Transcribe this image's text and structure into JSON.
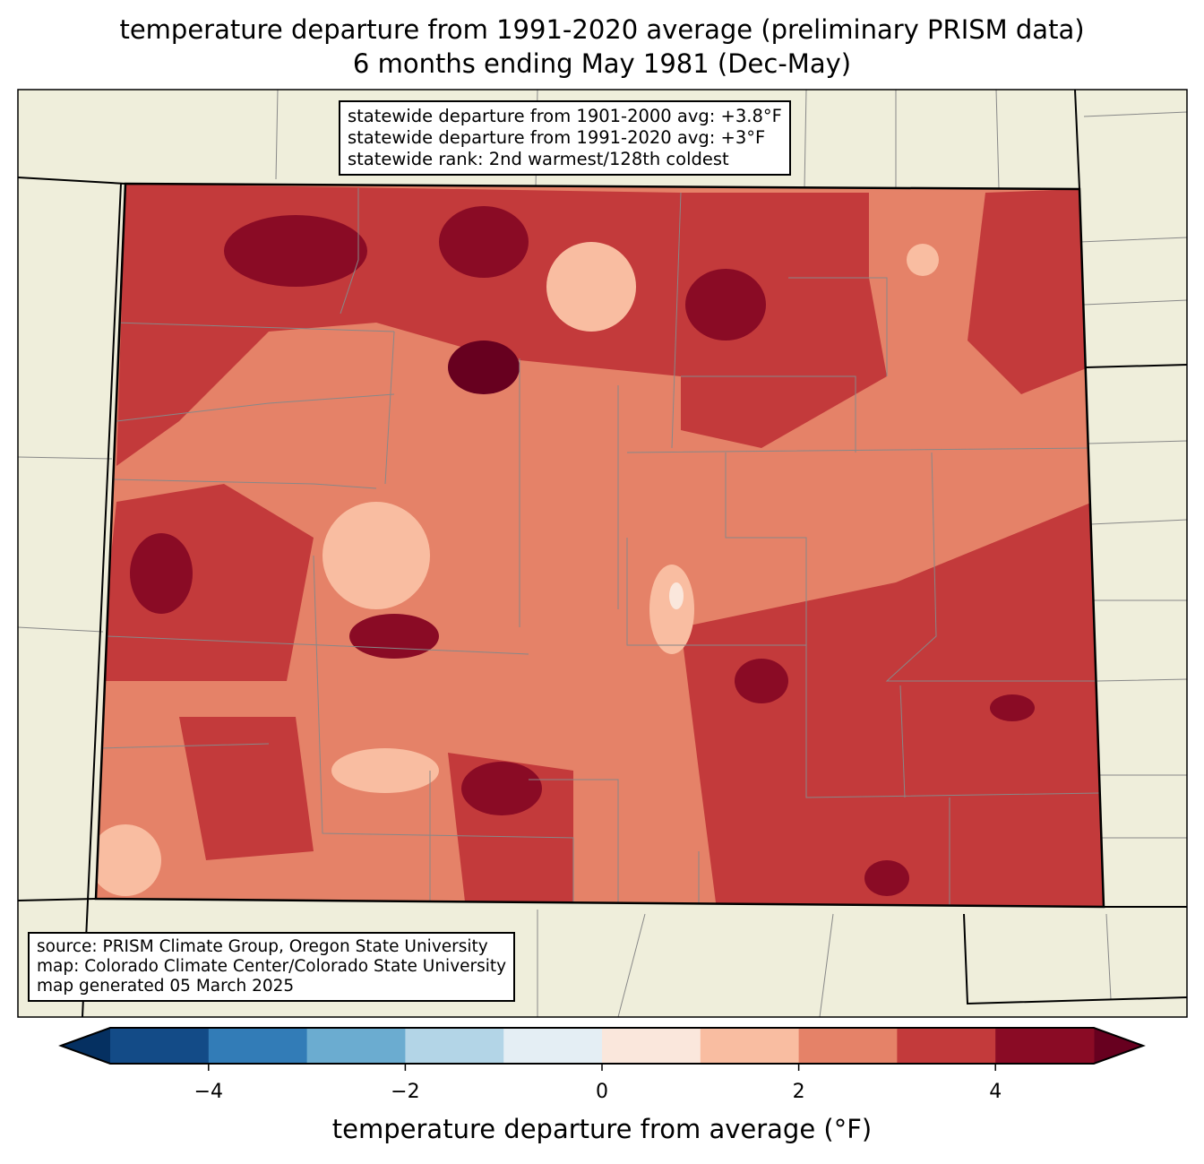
{
  "title": {
    "line1": "temperature departure from 1991-2020 average (preliminary PRISM data)",
    "line2": "6 months ending May 1981 (Dec-May)"
  },
  "stats": {
    "line1": "statewide departure from 1901-2000 avg: +3.8°F",
    "line2": "statewide departure from 1991-2020 avg: +3°F",
    "line3": "statewide rank: 2nd warmest/128th coldest"
  },
  "source": {
    "line1": "source: PRISM Climate Group, Oregon State University",
    "line2": "map: Colorado Climate Center/Colorado State University",
    "line3": "map generated 05 March 2025"
  },
  "colorbar": {
    "label": "temperature departure from average (°F)",
    "levels": [
      -5,
      -4,
      -3,
      -2,
      -1,
      0,
      1,
      2,
      3,
      4,
      5
    ],
    "colors": [
      "#134b87",
      "#327cb7",
      "#6bacd0",
      "#b3d5e7",
      "#e4eef4",
      "#fae7dc",
      "#f9bda1",
      "#e58268",
      "#c33a3b",
      "#8a0b25"
    ],
    "under_color": "#053061",
    "over_color": "#67001f",
    "ticks": [
      "−4",
      "−2",
      "0",
      "2",
      "4"
    ]
  },
  "map": {
    "land_color": "#efeedb",
    "base_color": "#e58268"
  }
}
